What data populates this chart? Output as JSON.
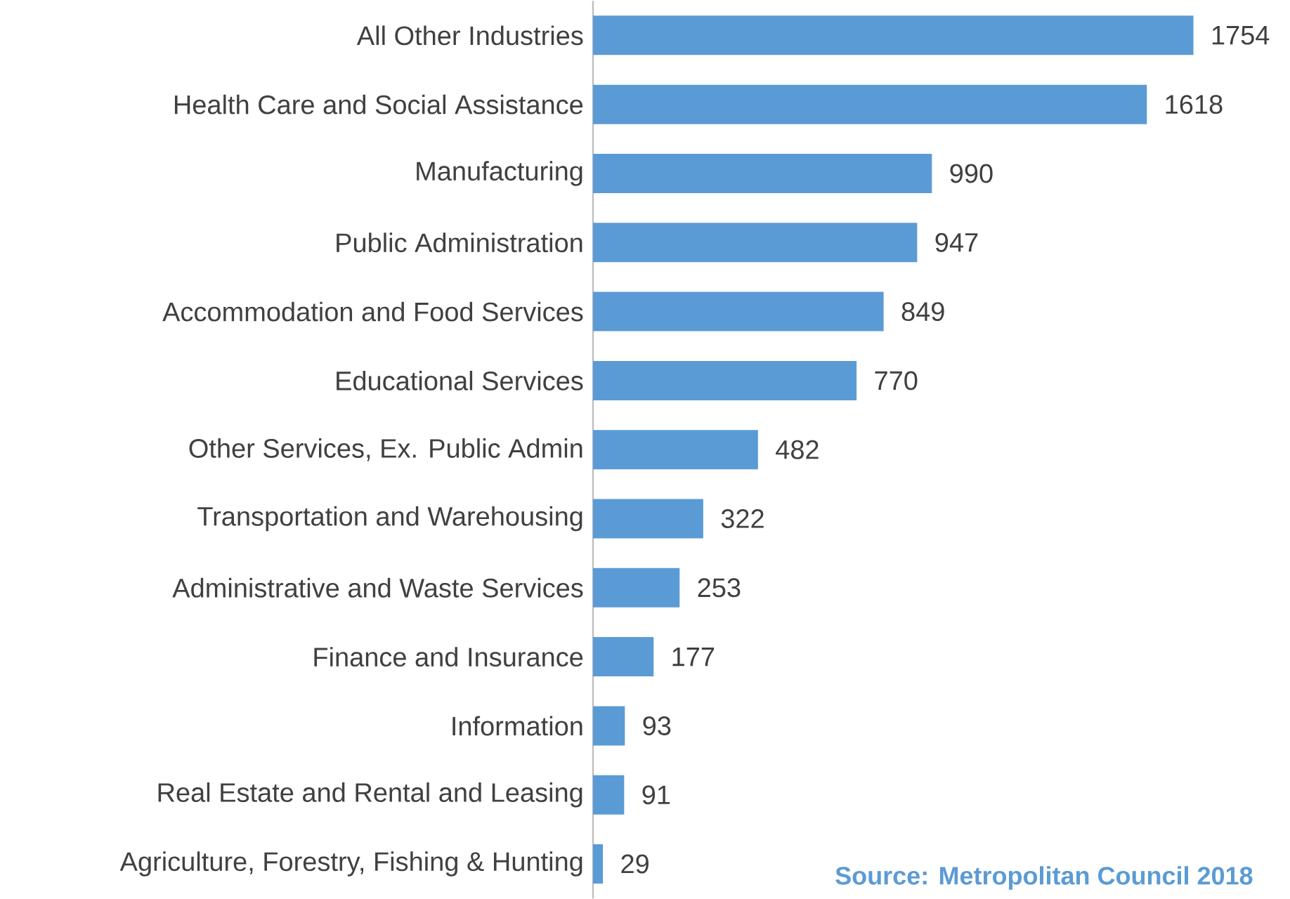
{
  "chart_data": {
    "type": "bar",
    "orientation": "horizontal",
    "categories": [
      "All Other Industries",
      "Health Care and Social Assistance",
      "Manufacturing",
      "Public Administration",
      "Accommodation and Food Services",
      "Educational Services",
      "Other Services, Ex. Public Admin",
      "Transportation and Warehousing",
      "Administrative and Waste Services",
      "Finance and Insurance",
      "Information",
      "Real Estate and Rental and Leasing",
      "Agriculture, Forestry, Fishing & Hunting"
    ],
    "values": [
      1754,
      1618,
      990,
      947,
      849,
      770,
      482,
      322,
      253,
      177,
      93,
      91,
      29
    ],
    "color": "#5b9bd5",
    "data_labels": true,
    "tick_labels": "y",
    "annotations": [
      "Source: Metropolitan Council 2018"
    ]
  }
}
